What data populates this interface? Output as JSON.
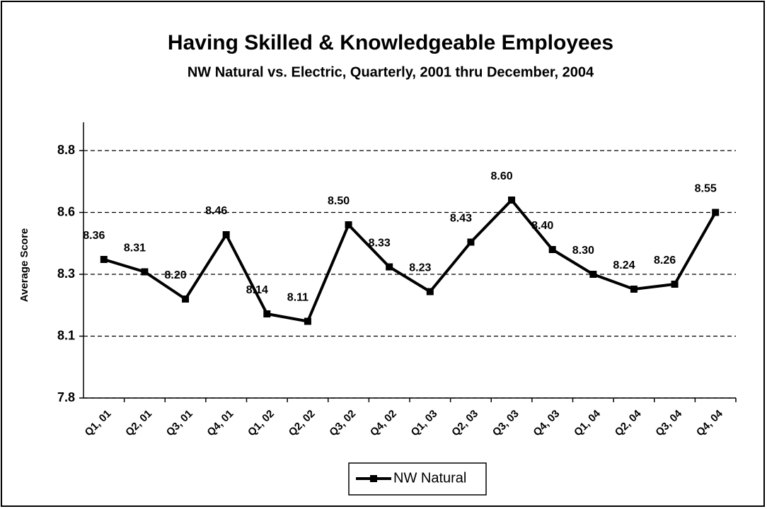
{
  "chart_data": {
    "type": "line",
    "title": "Having Skilled & Knowledgeable Employees",
    "subtitle": "NW Natural vs. Electric, Quarterly, 2001 thru December, 2004",
    "y_label": "Average Score",
    "categories": [
      "Q1, 01",
      "Q2, 01",
      "Q3, 01",
      "Q4, 01",
      "Q1, 02",
      "Q2, 02",
      "Q3, 02",
      "Q4, 02",
      "Q1, 03",
      "Q2, 03",
      "Q3, 03",
      "Q4, 03",
      "Q1, 04",
      "Q2, 04",
      "Q3, 04",
      "Q4, 04"
    ],
    "series": [
      {
        "name": "NW Natural",
        "color": "#000000",
        "values": [
          8.36,
          8.31,
          8.2,
          8.46,
          8.14,
          8.11,
          8.5,
          8.33,
          8.23,
          8.43,
          8.6,
          8.4,
          8.3,
          8.24,
          8.26,
          8.55
        ],
        "value_labels": [
          "8.36",
          "8.31",
          "8.20",
          "8.46",
          "8.14",
          "8.11",
          "8.50",
          "8.33",
          "8.23",
          "8.43",
          "8.60",
          "8.40",
          "8.30",
          "8.24",
          "8.26",
          "8.55"
        ]
      }
    ],
    "ylim": [
      7.8,
      8.8
    ],
    "yticks": [
      7.8,
      {
        "value": 8.05,
        "label": "8.1"
      },
      8.3,
      {
        "value": 8.55,
        "label": "8.6"
      },
      8.8
    ],
    "grid": true,
    "legend": "bottom"
  }
}
